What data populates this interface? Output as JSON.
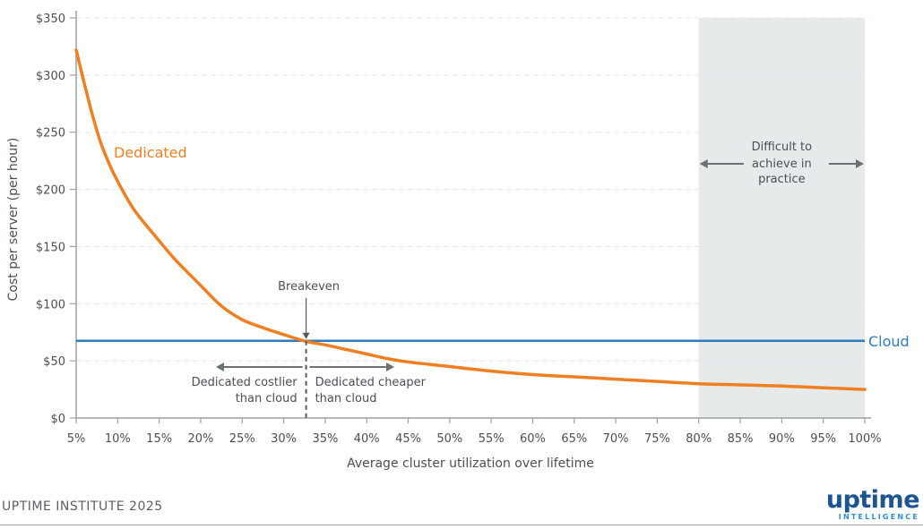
{
  "chart_data": {
    "type": "line",
    "xlabel": "Average cluster utilization over lifetime",
    "ylabel": "Cost per server (per hour)",
    "x_unit": "%",
    "xlim": [
      5,
      100
    ],
    "ylim": [
      0,
      350
    ],
    "x_ticks": [
      "5%",
      "10%",
      "15%",
      "20%",
      "25%",
      "30%",
      "35%",
      "40%",
      "45%",
      "50%",
      "55%",
      "60%",
      "65%",
      "70%",
      "75%",
      "80%",
      "85%",
      "90%",
      "95%",
      "100%"
    ],
    "y_ticks": [
      "$0",
      "$50",
      "$100",
      "$150",
      "$200",
      "$250",
      "$300",
      "$350"
    ],
    "grid": "horizontal dashed",
    "series": [
      {
        "name": "Dedicated",
        "color": "#f07f22",
        "x": [
          5,
          6,
          7,
          8,
          9,
          10,
          12,
          15,
          17,
          20,
          22.5,
          25,
          27.5,
          30,
          32.7,
          35,
          37.5,
          40,
          42.5,
          45,
          47.5,
          50,
          55,
          60,
          65,
          70,
          75,
          80,
          85,
          90,
          95,
          100
        ],
        "y": [
          322,
          292,
          264,
          240,
          222,
          207,
          182,
          155,
          138,
          116,
          98,
          86,
          79,
          73,
          67,
          64,
          60,
          56,
          52,
          49,
          47,
          45,
          41,
          38,
          36,
          34,
          32,
          30,
          29,
          28,
          26.5,
          25
        ]
      },
      {
        "name": "Cloud",
        "color": "#2f7cbf",
        "x": [
          5,
          100
        ],
        "y": [
          67.5,
          67.5
        ]
      }
    ],
    "shaded_region": {
      "x": [
        80,
        100
      ],
      "color": "#e6eaeb",
      "label_lines": [
        "Difficult to",
        "achieve in",
        "practice"
      ]
    },
    "breakeven": {
      "x": 32.7,
      "label": "Breakeven",
      "left_label_lines": [
        "Dedicated costlier",
        "than cloud"
      ],
      "right_label_lines": [
        "Dedicated cheaper",
        "than cloud"
      ]
    }
  },
  "footer": {
    "source": "UPTIME INSTITUTE 2025",
    "logo_main": "uptime",
    "logo_sub": "INTELLIGENCE"
  }
}
